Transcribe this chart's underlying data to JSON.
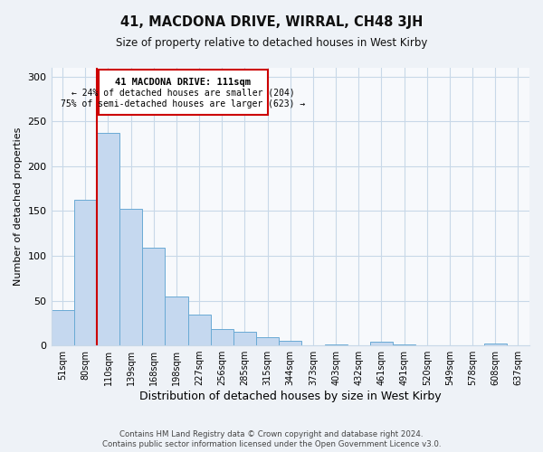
{
  "title": "41, MACDONA DRIVE, WIRRAL, CH48 3JH",
  "subtitle": "Size of property relative to detached houses in West Kirby",
  "xlabel": "Distribution of detached houses by size in West Kirby",
  "ylabel": "Number of detached properties",
  "bar_labels": [
    "51sqm",
    "80sqm",
    "110sqm",
    "139sqm",
    "168sqm",
    "198sqm",
    "227sqm",
    "256sqm",
    "285sqm",
    "315sqm",
    "344sqm",
    "373sqm",
    "403sqm",
    "432sqm",
    "461sqm",
    "491sqm",
    "520sqm",
    "549sqm",
    "578sqm",
    "608sqm",
    "637sqm"
  ],
  "bar_values": [
    39,
    163,
    237,
    153,
    109,
    55,
    34,
    18,
    15,
    9,
    5,
    0,
    1,
    0,
    4,
    1,
    0,
    0,
    0,
    2,
    0
  ],
  "bar_color": "#c5d8ef",
  "bar_edgecolor": "#6aaad4",
  "bar_width": 1.0,
  "ylim": [
    0,
    310
  ],
  "yticks": [
    0,
    50,
    100,
    150,
    200,
    250,
    300
  ],
  "vline_x_index": 2,
  "vline_color": "#cc0000",
  "annotation_title": "41 MACDONA DRIVE: 111sqm",
  "annotation_line1": "← 24% of detached houses are smaller (204)",
  "annotation_line2": "75% of semi-detached houses are larger (623) →",
  "annotation_box_color": "#cc0000",
  "footer_line1": "Contains HM Land Registry data © Crown copyright and database right 2024.",
  "footer_line2": "Contains public sector information licensed under the Open Government Licence v3.0.",
  "bg_color": "#eef2f7",
  "plot_bg_color": "#f7f9fc",
  "grid_color": "#c8d8e8"
}
